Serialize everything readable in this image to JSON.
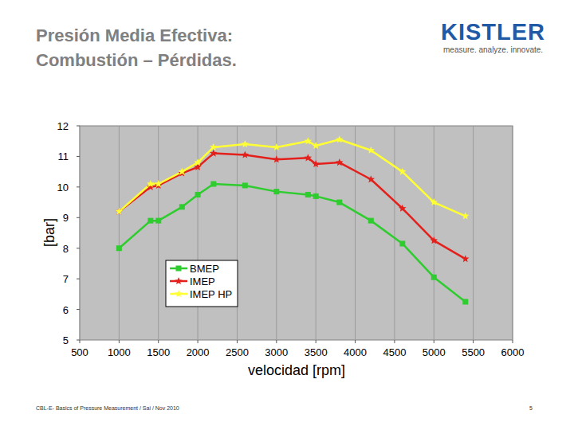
{
  "slide": {
    "title_lines": [
      "Presión Media Efectiva:",
      "Combustión – Pérdidas."
    ],
    "logo": {
      "name": "KISTLER",
      "tagline": "measure. analyze. innovate."
    },
    "footer": "CBL-E- Basics of Pressure Measurement / Sai / Nov 2010",
    "page": 5
  },
  "chart_data": {
    "type": "line",
    "x_label": "velocidad [rpm]",
    "y_label": "[bar]",
    "x": [
      1000,
      1400,
      1500,
      1800,
      2000,
      2200,
      2600,
      3000,
      3400,
      3500,
      3800,
      4200,
      4600,
      5000,
      5400
    ],
    "series": [
      {
        "name": "BMEP",
        "color": "#2ecc2e",
        "marker": "square",
        "line_style": "solid",
        "values": [
          8.0,
          8.9,
          8.9,
          9.35,
          9.75,
          10.1,
          10.05,
          9.85,
          9.75,
          9.7,
          9.5,
          8.9,
          8.15,
          7.05,
          6.25
        ]
      },
      {
        "name": "IMEP",
        "color": "#e3201b",
        "marker": "star",
        "line_style": "solid",
        "values": [
          9.2,
          10.0,
          10.05,
          10.45,
          10.65,
          11.1,
          11.05,
          10.9,
          10.95,
          10.75,
          10.8,
          10.25,
          9.3,
          8.25,
          7.65
        ]
      },
      {
        "name": "IMEP HP",
        "color": "#ffff33",
        "marker": "star",
        "line_style": "solid",
        "values": [
          9.2,
          10.1,
          10.1,
          10.5,
          10.8,
          11.3,
          11.4,
          11.3,
          11.5,
          11.35,
          11.55,
          11.2,
          10.5,
          9.5,
          9.05
        ]
      }
    ],
    "xlim": [
      500,
      6000
    ],
    "xticks": [
      500,
      1000,
      1500,
      2000,
      2500,
      3000,
      3500,
      4000,
      4500,
      5000,
      5500,
      6000
    ],
    "ylim": [
      5,
      12
    ],
    "yticks": [
      5,
      6,
      7,
      8,
      9,
      10,
      11,
      12
    ],
    "grid": true,
    "legend": "lower left"
  }
}
